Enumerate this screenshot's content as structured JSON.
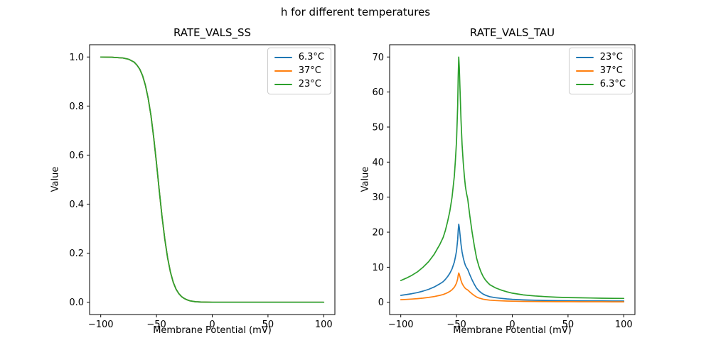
{
  "figure": {
    "title": "h for different temperatures"
  },
  "colors": {
    "blue": "#1f77b4",
    "orange": "#ff7f0e",
    "green": "#2ca02c",
    "axis": "#000000",
    "legend_border": "#cccccc"
  },
  "chart_data": [
    {
      "type": "line",
      "title": "RATE_VALS_SS",
      "xlabel": "Membrane Potential (mV)",
      "ylabel": "Value",
      "xlim": [
        -110,
        110
      ],
      "ylim": [
        -0.05,
        1.05
      ],
      "xticks": [
        -100,
        -50,
        0,
        50,
        100
      ],
      "xtick_labels": [
        "−100",
        "−50",
        "0",
        "50",
        "100"
      ],
      "yticks": [
        0.0,
        0.2,
        0.4,
        0.6,
        0.8,
        1.0
      ],
      "ytick_labels": [
        "0.0",
        "0.2",
        "0.4",
        "0.6",
        "0.8",
        "1.0"
      ],
      "grid": false,
      "legend_position": "upper right",
      "legend": [
        {
          "label": "6.3°C",
          "color": "#1f77b4"
        },
        {
          "label": "37°C",
          "color": "#ff7f0e"
        },
        {
          "label": "23°C",
          "color": "#2ca02c"
        }
      ],
      "x": [
        -100,
        -90,
        -80,
        -75,
        -70,
        -67.5,
        -65,
        -62.5,
        -60,
        -57.5,
        -55,
        -52.5,
        -50,
        -47.5,
        -45,
        -42.5,
        -40,
        -37.5,
        -35,
        -32.5,
        -30,
        -27.5,
        -25,
        -22.5,
        -20,
        -15,
        -10,
        0,
        25,
        50,
        75,
        100
      ],
      "series": [
        {
          "name": "6.3°C",
          "color": "#1f77b4",
          "y": [
            1.0,
            0.999,
            0.996,
            0.991,
            0.979,
            0.967,
            0.95,
            0.924,
            0.886,
            0.833,
            0.762,
            0.671,
            0.567,
            0.455,
            0.349,
            0.255,
            0.18,
            0.123,
            0.082,
            0.054,
            0.035,
            0.023,
            0.015,
            0.01,
            0.006,
            0.002,
            0.001,
            0.0,
            0.0,
            0.0,
            0.0,
            0.0
          ]
        },
        {
          "name": "37°C",
          "color": "#ff7f0e",
          "y": [
            1.0,
            0.999,
            0.996,
            0.991,
            0.979,
            0.967,
            0.95,
            0.924,
            0.886,
            0.833,
            0.762,
            0.671,
            0.567,
            0.455,
            0.349,
            0.255,
            0.18,
            0.123,
            0.082,
            0.054,
            0.035,
            0.023,
            0.015,
            0.01,
            0.006,
            0.002,
            0.001,
            0.0,
            0.0,
            0.0,
            0.0,
            0.0
          ]
        },
        {
          "name": "23°C",
          "color": "#2ca02c",
          "y": [
            1.0,
            0.999,
            0.996,
            0.991,
            0.979,
            0.967,
            0.95,
            0.924,
            0.886,
            0.833,
            0.762,
            0.671,
            0.567,
            0.455,
            0.349,
            0.255,
            0.18,
            0.123,
            0.082,
            0.054,
            0.035,
            0.023,
            0.015,
            0.01,
            0.006,
            0.002,
            0.001,
            0.0,
            0.0,
            0.0,
            0.0,
            0.0
          ]
        }
      ]
    },
    {
      "type": "line",
      "title": "RATE_VALS_TAU",
      "xlabel": "Membrane Potential (mV)",
      "ylabel": "Value",
      "xlim": [
        -110,
        110
      ],
      "ylim": [
        -3.5,
        73.5
      ],
      "xticks": [
        -100,
        -50,
        0,
        50,
        100
      ],
      "xtick_labels": [
        "−100",
        "−50",
        "0",
        "50",
        "100"
      ],
      "yticks": [
        0,
        10,
        20,
        30,
        40,
        50,
        60,
        70
      ],
      "ytick_labels": [
        "0",
        "10",
        "20",
        "30",
        "40",
        "50",
        "60",
        "70"
      ],
      "grid": false,
      "legend_position": "upper right",
      "legend": [
        {
          "label": "23°C",
          "color": "#1f77b4"
        },
        {
          "label": "37°C",
          "color": "#ff7f0e"
        },
        {
          "label": "6.3°C",
          "color": "#2ca02c"
        }
      ],
      "x": [
        -100,
        -95,
        -90,
        -85,
        -80,
        -75,
        -70,
        -65,
        -62,
        -60,
        -58,
        -56,
        -54,
        -52,
        -51,
        -50,
        -49,
        -48.5,
        -48,
        -47.5,
        -47,
        -46,
        -45,
        -44,
        -43,
        -42,
        -41,
        -40,
        -38,
        -36,
        -34,
        -32,
        -30,
        -28,
        -26,
        -24,
        -22,
        -20,
        -15,
        -10,
        -5,
        0,
        10,
        20,
        30,
        40,
        50,
        60,
        70,
        80,
        90,
        100
      ],
      "series": [
        {
          "name": "23°C",
          "color": "#1f77b4",
          "peak": 22.3,
          "y": [
            1.97,
            2.2,
            2.45,
            2.77,
            3.18,
            3.69,
            4.36,
            5.25,
            5.89,
            6.53,
            7.32,
            8.28,
            9.55,
            11.46,
            12.9,
            14.65,
            17.83,
            20.38,
            22.3,
            21.34,
            19.75,
            16.56,
            14.33,
            12.74,
            11.46,
            10.51,
            9.87,
            9.39,
            7.8,
            6.37,
            5.1,
            4.01,
            3.28,
            2.74,
            2.32,
            2.01,
            1.78,
            1.59,
            1.31,
            1.11,
            0.96,
            0.83,
            0.67,
            0.57,
            0.51,
            0.46,
            0.43,
            0.41,
            0.39,
            0.37,
            0.36,
            0.35
          ]
        },
        {
          "name": "37°C",
          "color": "#ff7f0e",
          "peak": 8.35,
          "y": [
            0.74,
            0.82,
            0.92,
            1.04,
            1.19,
            1.38,
            1.63,
            1.97,
            2.21,
            2.45,
            2.74,
            3.1,
            3.58,
            4.3,
            4.83,
            5.49,
            6.68,
            7.64,
            8.35,
            8.0,
            7.4,
            6.21,
            5.37,
            4.77,
            4.3,
            3.94,
            3.7,
            3.52,
            2.92,
            2.39,
            1.91,
            1.5,
            1.23,
            1.03,
            0.87,
            0.75,
            0.67,
            0.6,
            0.49,
            0.42,
            0.36,
            0.31,
            0.25,
            0.21,
            0.19,
            0.17,
            0.16,
            0.15,
            0.15,
            0.14,
            0.13,
            0.13
          ]
        },
        {
          "name": "6.3°C",
          "color": "#2ca02c",
          "peak": 70,
          "y": [
            6.2,
            6.9,
            7.7,
            8.7,
            10.0,
            11.6,
            13.7,
            16.5,
            18.5,
            20.5,
            23.0,
            26.0,
            30.0,
            36.0,
            40.5,
            46.0,
            56.0,
            64.0,
            70.0,
            67.0,
            62.0,
            52.0,
            45.0,
            40.0,
            36.0,
            33.0,
            31.0,
            29.5,
            24.5,
            20.0,
            16.0,
            12.6,
            10.3,
            8.6,
            7.3,
            6.3,
            5.6,
            5.0,
            4.1,
            3.5,
            3.0,
            2.6,
            2.1,
            1.8,
            1.6,
            1.45,
            1.35,
            1.28,
            1.22,
            1.17,
            1.13,
            1.1
          ]
        }
      ]
    }
  ]
}
